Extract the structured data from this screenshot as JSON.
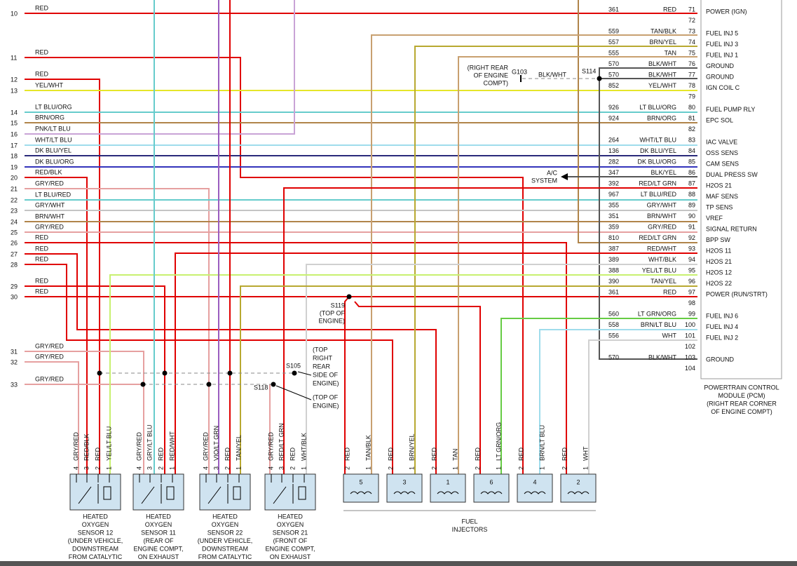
{
  "left_wires": [
    {
      "number": "10",
      "color": "RED"
    },
    {
      "number": "11",
      "color": "RED"
    },
    {
      "number": "12",
      "color": "RED"
    },
    {
      "number": "13",
      "color": "YEL/WHT"
    },
    {
      "number": "14",
      "color": "LT BLU/ORG"
    },
    {
      "number": "15",
      "color": "BRN/ORG"
    },
    {
      "number": "16",
      "color": "PNK/LT BLU"
    },
    {
      "number": "17",
      "color": "WHT/LT BLU"
    },
    {
      "number": "18",
      "color": "DK BLU/YEL"
    },
    {
      "number": "19",
      "color": "DK BLU/ORG"
    },
    {
      "number": "20",
      "color": "RED/BLK"
    },
    {
      "number": "21",
      "color": "GRY/RED"
    },
    {
      "number": "22",
      "color": "LT BLU/RED"
    },
    {
      "number": "23",
      "color": "GRY/WHT"
    },
    {
      "number": "24",
      "color": "BRN/WHT"
    },
    {
      "number": "25",
      "color": "GRY/RED"
    },
    {
      "number": "26",
      "color": "RED"
    },
    {
      "number": "27",
      "color": "RED"
    },
    {
      "number": "28",
      "color": "RED"
    },
    {
      "number": "29",
      "color": "RED"
    },
    {
      "number": "30",
      "color": "RED"
    },
    {
      "number": "31",
      "color": "GRY/RED"
    },
    {
      "number": "32",
      "color": "GRY/RED"
    },
    {
      "number": "33",
      "color": "GRY/RED"
    }
  ],
  "pcm": {
    "title": [
      "POWERTRAIN CONTROL",
      "MODULE (PCM)",
      "(RIGHT REAR CORNER",
      "OF ENGINE COMPT)"
    ],
    "pins": [
      {
        "pin": "71",
        "circuit": "361",
        "color": "RED",
        "function": "POWER (IGN)"
      },
      {
        "pin": "72"
      },
      {
        "pin": "73",
        "circuit": "559",
        "color": "TAN/BLK",
        "function": "FUEL INJ 5"
      },
      {
        "pin": "74",
        "circuit": "557",
        "color": "BRN/YEL",
        "function": "FUEL INJ 3"
      },
      {
        "pin": "75",
        "circuit": "555",
        "color": "TAN",
        "function": "FUEL INJ 1"
      },
      {
        "pin": "76",
        "circuit": "570",
        "color": "BLK/WHT",
        "function": "GROUND"
      },
      {
        "pin": "77",
        "circuit": "570",
        "color": "BLK/WHT",
        "function": "GROUND"
      },
      {
        "pin": "78",
        "circuit": "852",
        "color": "YEL/WHT",
        "function": "IGN COIL C"
      },
      {
        "pin": "79"
      },
      {
        "pin": "80",
        "circuit": "926",
        "color": "LT BLU/ORG",
        "function": "FUEL PUMP RLY"
      },
      {
        "pin": "81",
        "circuit": "924",
        "color": "BRN/ORG",
        "function": "EPC SOL"
      },
      {
        "pin": "82"
      },
      {
        "pin": "83",
        "circuit": "264",
        "color": "WHT/LT BLU",
        "function": "IAC VALVE"
      },
      {
        "pin": "84",
        "circuit": "136",
        "color": "DK BLU/YEL",
        "function": "OSS SENS"
      },
      {
        "pin": "85",
        "circuit": "282",
        "color": "DK BLU/ORG",
        "function": "CAM SENS"
      },
      {
        "pin": "86",
        "circuit": "347",
        "color": "BLK/YEL",
        "function": "DUAL PRESS SW"
      },
      {
        "pin": "87",
        "circuit": "392",
        "color": "RED/LT GRN",
        "function": "H2OS 21"
      },
      {
        "pin": "88",
        "circuit": "967",
        "color": "LT BLU/RED",
        "function": "MAF SENS"
      },
      {
        "pin": "89",
        "circuit": "355",
        "color": "GRY/WHT",
        "function": "TP SENS"
      },
      {
        "pin": "90",
        "circuit": "351",
        "color": "BRN/WHT",
        "function": "VREF"
      },
      {
        "pin": "91",
        "circuit": "359",
        "color": "GRY/RED",
        "function": "SIGNAL RETURN"
      },
      {
        "pin": "92",
        "circuit": "810",
        "color": "RED/LT GRN",
        "function": "BPP SW"
      },
      {
        "pin": "93",
        "circuit": "387",
        "color": "RED/WHT",
        "function": "H2OS 11"
      },
      {
        "pin": "94",
        "circuit": "389",
        "color": "WHT/BLK",
        "function": "H2OS 21"
      },
      {
        "pin": "95",
        "circuit": "388",
        "color": "YEL/LT BLU",
        "function": "H2OS 12"
      },
      {
        "pin": "96",
        "circuit": "390",
        "color": "TAN/YEL",
        "function": "H2OS 22"
      },
      {
        "pin": "97",
        "circuit": "361",
        "color": "RED",
        "function": "POWER (RUN/STRT)"
      },
      {
        "pin": "98"
      },
      {
        "pin": "99",
        "circuit": "560",
        "color": "LT GRN/ORG",
        "function": "FUEL INJ 6"
      },
      {
        "pin": "100",
        "circuit": "558",
        "color": "BRN/LT BLU",
        "function": "FUEL INJ 4"
      },
      {
        "pin": "101",
        "circuit": "556",
        "color": "WHT",
        "function": "FUEL INJ 2"
      },
      {
        "pin": "102"
      },
      {
        "pin": "103",
        "circuit": "570",
        "color": "BLK/WHT",
        "function": "GROUND"
      },
      {
        "pin": "104"
      }
    ]
  },
  "ground": {
    "location": [
      "(RIGHT REAR",
      "OF ENGINE",
      "COMPT)"
    ],
    "name": "G103",
    "color": "BLK/WHT",
    "splice": "S114"
  },
  "ac_system": [
    "A/C",
    "SYSTEM"
  ],
  "s119": {
    "name": "S119",
    "location": [
      "(TOP OF",
      "ENGINE)"
    ]
  },
  "s105": {
    "name": "S105",
    "location": [
      "(TOP",
      "RIGHT",
      "REAR",
      "SIDE OF",
      "ENGINE)"
    ]
  },
  "s118": {
    "name": "S118",
    "location": [
      "(TOP OF",
      "ENGINE)"
    ]
  },
  "sensors": [
    {
      "pins": [
        {
          "pin": "4",
          "color": "GRY/RED"
        },
        {
          "pin": "3",
          "color": "RED/BLK"
        },
        {
          "pin": "2",
          "color": "RED"
        },
        {
          "pin": "1",
          "color": "YEL/LT BLU"
        }
      ],
      "caption": [
        "HEATED",
        "OXYGEN",
        "SENSOR 12",
        "(UNDER VEHICLE,",
        "DOWNSTREAM",
        "FROM CATALYTIC"
      ]
    },
    {
      "pins": [
        {
          "pin": "4",
          "color": "GRY/RED"
        },
        {
          "pin": "3",
          "color": "GRY/LT BLU"
        },
        {
          "pin": "2",
          "color": "RED"
        },
        {
          "pin": "1",
          "color": "RED/WHT"
        }
      ],
      "caption": [
        "HEATED",
        "OXYGEN",
        "SENSOR 11",
        "(REAR OF",
        "ENGINE COMPT,",
        "ON EXHAUST"
      ]
    },
    {
      "pins": [
        {
          "pin": "4",
          "color": "GRY/RED"
        },
        {
          "pin": "3",
          "color": "VIO/LT GRN"
        },
        {
          "pin": "2",
          "color": "RED"
        },
        {
          "pin": "1",
          "color": "TAN/YEL"
        }
      ],
      "caption": [
        "HEATED",
        "OXYGEN",
        "SENSOR 22",
        "(UNDER VEHICLE,",
        "DOWNSTREAM",
        "FROM CATALYTIC"
      ]
    },
    {
      "pins": [
        {
          "pin": "4",
          "color": "GRY/RED"
        },
        {
          "pin": "3",
          "color": "RED/LT GRN"
        },
        {
          "pin": "2",
          "color": "RED"
        },
        {
          "pin": "1",
          "color": "WHT/BLK"
        }
      ],
      "caption": [
        "HEATED",
        "OXYGEN",
        "SENSOR 21",
        "(FRONT OF",
        "ENGINE COMPT,",
        "ON EXHAUST"
      ]
    }
  ],
  "injectors": {
    "items": [
      {
        "number": "5",
        "pins": [
          {
            "pin": "2",
            "color": "RED"
          },
          {
            "pin": "1",
            "color": "TAN/BLK"
          }
        ]
      },
      {
        "number": "3",
        "pins": [
          {
            "pin": "2",
            "color": "RED"
          },
          {
            "pin": "1",
            "color": "BRN/YEL"
          }
        ]
      },
      {
        "number": "1",
        "pins": [
          {
            "pin": "2",
            "color": "RED"
          },
          {
            "pin": "1",
            "color": "TAN"
          }
        ]
      },
      {
        "number": "6",
        "pins": [
          {
            "pin": "2",
            "color": "RED"
          },
          {
            "pin": "1",
            "color": "LT GRN/ORG"
          }
        ]
      },
      {
        "number": "4",
        "pins": [
          {
            "pin": "2",
            "color": "RED"
          },
          {
            "pin": "1",
            "color": "BRN/LT BLU"
          }
        ]
      },
      {
        "number": "2",
        "pins": [
          {
            "pin": "2",
            "color": "RED"
          },
          {
            "pin": "1",
            "color": "WHT"
          }
        ]
      }
    ],
    "caption": [
      "FUEL",
      "INJECTORS"
    ]
  }
}
